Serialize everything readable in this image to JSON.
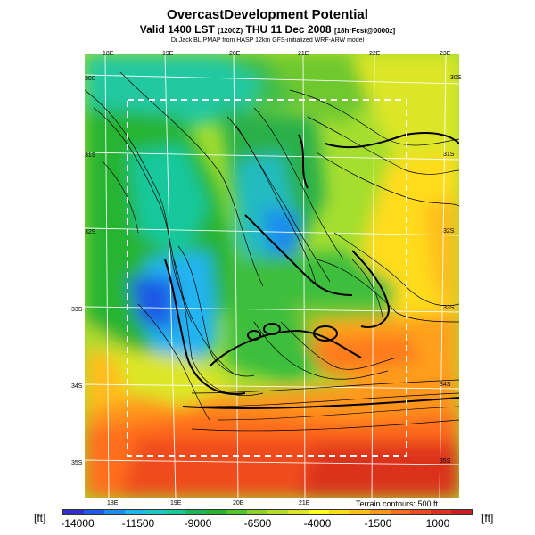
{
  "header": {
    "title": "OvercastDevelopment Potential",
    "valid_prefix": "Valid 1400 LST",
    "valid_small": "(1200Z)",
    "valid_main": "THU 11 Dec 2008",
    "valid_tail": "[18hrFcst@0000z]",
    "credit": "Dr.Jack BLIPMAP from HASP 12km GFS-initialized WRF-ARW model"
  },
  "map": {
    "lon_labels_top": [
      "18E",
      "19E",
      "20E",
      "21E",
      "22E",
      "23E"
    ],
    "lon_labels_bottom": [
      "18E",
      "19E",
      "20E",
      "21E"
    ],
    "lat_labels_left": [
      "30S",
      "31S",
      "32S",
      "33S",
      "34S",
      "35S"
    ],
    "lat_labels_right": [
      "30S",
      "31S",
      "32S",
      "33S",
      "34S",
      "35S"
    ]
  },
  "footer": {
    "terrain_note": "Terrain contours: 500 ft",
    "unit_left": "[ft]",
    "unit_right": "[ft]",
    "colorbar_ticks": [
      "-14000",
      "-11500",
      "-9000",
      "-6500",
      "-4000",
      "-1500",
      "1000"
    ],
    "colorbar_colors": [
      "#3030c8",
      "#1e5ae6",
      "#1f8cf0",
      "#22b4f0",
      "#1fc8c8",
      "#19c89b",
      "#1eb45a",
      "#28b428",
      "#50c828",
      "#8cd22d",
      "#b4dc2d",
      "#dce628",
      "#ffff1e",
      "#ffdc1e",
      "#ffbe1e",
      "#ff961e",
      "#ff6e1e",
      "#f04b1e",
      "#dc321e",
      "#c81e1e"
    ]
  }
}
